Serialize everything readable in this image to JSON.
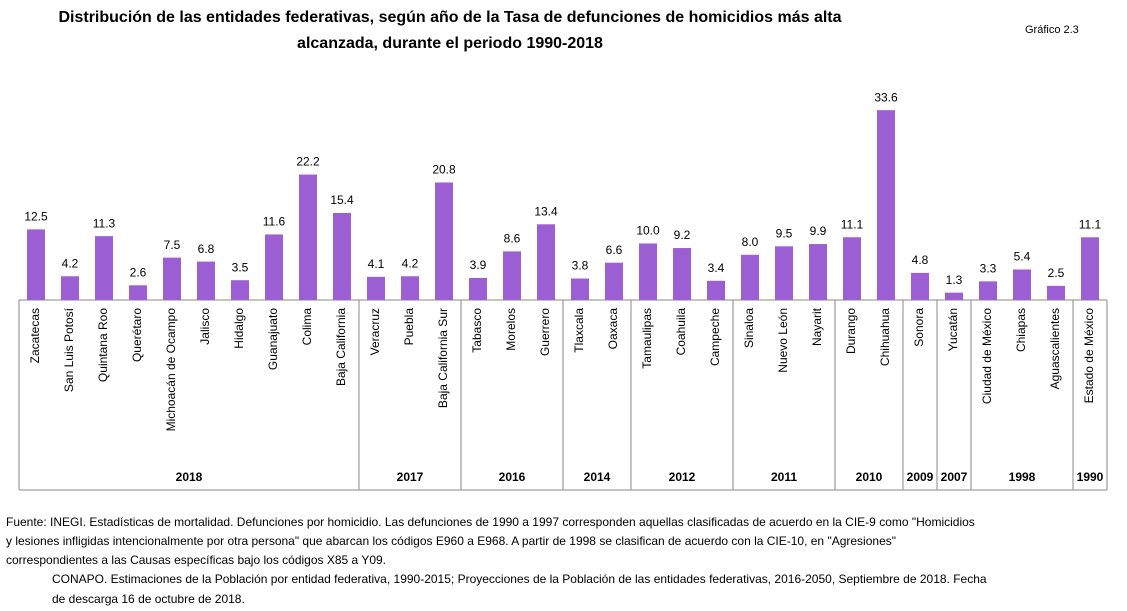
{
  "chart_data": {
    "type": "bar",
    "title": "Distribución de las entidades federativas, según año de la Tasa de defunciones de homicidios más alta",
    "subtitle": "alcanzada, durante el periodo 1990-2018",
    "figure_label": "Gráfico 2.3",
    "color": "#9c5fd3",
    "categories": [
      "Zacatecas",
      "San Luis Potosí",
      "Quintana Roo",
      "Querétaro",
      "Michoacán de Ocampo",
      "Jalisco",
      "Hidalgo",
      "Guanajuato",
      "Colima",
      "Baja California",
      "Veracruz",
      "Puebla",
      "Baja California Sur",
      "Tabasco",
      "Morelos",
      "Guerrero",
      "Tlaxcala",
      "Oaxaca",
      "Tamaulipas",
      "Coahuila",
      "Campeche",
      "Sinaloa",
      "Nuevo León",
      "Nayarit",
      "Durango",
      "Chihuahua",
      "Sonora",
      "Yucatán",
      "Ciudad de México",
      "Chiapas",
      "Aguascalientes",
      "Estado de México"
    ],
    "groups": [
      "2018",
      "2018",
      "2018",
      "2018",
      "2018",
      "2018",
      "2018",
      "2018",
      "2018",
      "2018",
      "2017",
      "2017",
      "2017",
      "2016",
      "2016",
      "2016",
      "2014",
      "2014",
      "2012",
      "2012",
      "2012",
      "2011",
      "2011",
      "2011",
      "2010",
      "2010",
      "2009",
      "2007",
      "1998",
      "1998",
      "1998",
      "1990"
    ],
    "values": [
      12.5,
      4.2,
      11.3,
      2.6,
      7.5,
      6.8,
      3.5,
      11.6,
      22.2,
      15.4,
      4.1,
      4.2,
      20.8,
      3.9,
      8.6,
      13.4,
      3.8,
      6.6,
      10.0,
      9.2,
      3.4,
      8.0,
      9.5,
      9.9,
      11.1,
      33.6,
      4.8,
      1.3,
      3.3,
      5.4,
      2.5,
      11.1
    ],
    "value_labels": [
      "12.5",
      "4.2",
      "11.3",
      "2.6",
      "7.5",
      "6.8",
      "3.5",
      "11.6",
      "22.2",
      "15.4",
      "4.1",
      "4.2",
      "20.8",
      "3.9",
      "8.6",
      "13.4",
      "3.8",
      "6.6",
      "10.0",
      "9.2",
      "3.4",
      "8.0",
      "9.5",
      "9.9",
      "11.1",
      "33.6",
      "4.8",
      "1.3",
      "3.3",
      "5.4",
      "2.5",
      "11.1"
    ],
    "notes": [
      "Fuente: INEGI. Estadísticas de mortalidad. Defunciones por homicidio. Las defunciones de 1990 a 1997 corresponden aquellas clasificadas de acuerdo en la CIE-9 como \"Homicidios",
      "y lesiones infligidas intencionalmente por otra persona\" que abarcan los códigos E960 a E968. A partir de 1998 se clasifican de acuerdo con la CIE-10, en \"Agresiones\"",
      "correspondientes a las Causas específicas bajo los códigos X85 a Y09.",
      "CONAPO. Estimaciones de la Población por entidad federativa, 1990-2015; Proyecciones de la Población de las entidades federativas, 2016-2050, Septiembre de 2018. Fecha",
      "de descarga 16 de octubre de 2018."
    ]
  }
}
